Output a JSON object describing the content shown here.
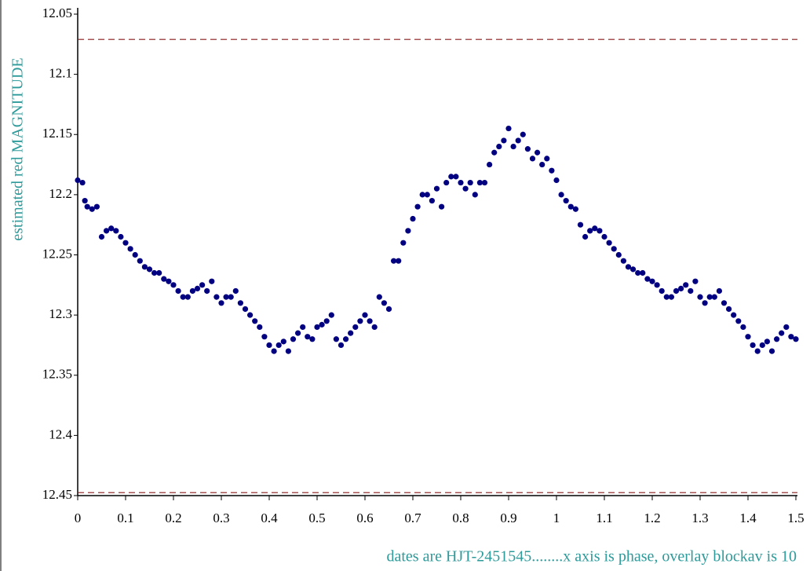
{
  "chart_data": {
    "type": "scatter",
    "y_label": "estimated red MAGNITUDE",
    "note": "dates are HJT-2451545........x axis is phase, overlay blockav is 10",
    "color": "#000080",
    "xlim": [
      0,
      1.5
    ],
    "xticks": [
      0,
      0.1,
      0.2,
      0.3,
      0.4,
      0.5,
      0.6,
      0.7,
      0.8,
      0.9,
      1,
      1.1,
      1.2,
      1.3,
      1.4,
      1.5
    ],
    "ylim": [
      12.05,
      12.45
    ],
    "y_inverted": true,
    "yticks": [
      12.05,
      12.1,
      12.15,
      12.2,
      12.25,
      12.3,
      12.35,
      12.4,
      12.45
    ],
    "reference_lines": {
      "values": [
        12.071,
        12.4475
      ],
      "color": "#8b1a1a"
    },
    "x": [
      0,
      0.01,
      0.015,
      0.02,
      0.03,
      0.04,
      0.05,
      0.06,
      0.07,
      0.08,
      0.09,
      0.1,
      0.11,
      0.12,
      0.13,
      0.14,
      0.15,
      0.16,
      0.17,
      0.18,
      0.19,
      0.2,
      0.21,
      0.22,
      0.23,
      0.24,
      0.25,
      0.26,
      0.27,
      0.28,
      0.29,
      0.3,
      0.31,
      0.32,
      0.33,
      0.34,
      0.35,
      0.36,
      0.37,
      0.38,
      0.39,
      0.4,
      0.41,
      0.42,
      0.43,
      0.44,
      0.45,
      0.46,
      0.47,
      0.48,
      0.49,
      0.5,
      0.51,
      0.52,
      0.53,
      0.54,
      0.55,
      0.56,
      0.57,
      0.58,
      0.59,
      0.6,
      0.61,
      0.62,
      0.63,
      0.64,
      0.65,
      0.66,
      0.67,
      0.68,
      0.69,
      0.7,
      0.71,
      0.72,
      0.73,
      0.74,
      0.75,
      0.76,
      0.77,
      0.78,
      0.79,
      0.8,
      0.81,
      0.82,
      0.83,
      0.84,
      0.85,
      0.86,
      0.87,
      0.88,
      0.89,
      0.9,
      0.91,
      0.92,
      0.93,
      0.94,
      0.95,
      0.96,
      0.97,
      0.98,
      0.99,
      1,
      1.01,
      1.02,
      1.03,
      1.04,
      1.05,
      1.06,
      1.07,
      1.08,
      1.09,
      1.1,
      1.11,
      1.12,
      1.13,
      1.14,
      1.15,
      1.16,
      1.17,
      1.18,
      1.19,
      1.2,
      1.21,
      1.22,
      1.23,
      1.24,
      1.25,
      1.26,
      1.27,
      1.28,
      1.29,
      1.3,
      1.31,
      1.32,
      1.33,
      1.34,
      1.35,
      1.36,
      1.37,
      1.38,
      1.39,
      1.4,
      1.41,
      1.42,
      1.43,
      1.44,
      1.45,
      1.46,
      1.47,
      1.48,
      1.49,
      1.5
    ],
    "values": [
      12.188,
      12.19,
      12.205,
      12.21,
      12.212,
      12.21,
      12.235,
      12.23,
      12.228,
      12.23,
      12.235,
      12.24,
      12.245,
      12.25,
      12.255,
      12.26,
      12.262,
      12.265,
      12.265,
      12.27,
      12.272,
      12.275,
      12.28,
      12.285,
      12.285,
      12.28,
      12.278,
      12.275,
      12.28,
      12.272,
      12.285,
      12.29,
      12.285,
      12.285,
      12.28,
      12.29,
      12.295,
      12.3,
      12.305,
      12.31,
      12.318,
      12.325,
      12.33,
      12.325,
      12.322,
      12.33,
      12.32,
      12.315,
      12.31,
      12.318,
      12.32,
      12.31,
      12.308,
      12.305,
      12.3,
      12.32,
      12.325,
      12.32,
      12.315,
      12.31,
      12.305,
      12.3,
      12.305,
      12.31,
      12.285,
      12.29,
      12.295,
      12.255,
      12.255,
      12.24,
      12.23,
      12.22,
      12.21,
      12.2,
      12.2,
      12.205,
      12.195,
      12.21,
      12.19,
      12.185,
      12.185,
      12.19,
      12.195,
      12.19,
      12.2,
      12.19,
      12.19,
      12.175,
      12.165,
      12.16,
      12.155,
      12.145,
      12.16,
      12.155,
      12.15,
      12.162,
      12.17,
      12.165,
      12.175,
      12.17,
      12.18,
      12.188,
      12.2,
      12.205,
      12.21,
      12.212,
      12.225,
      12.235,
      12.23,
      12.228,
      12.23,
      12.235,
      12.24,
      12.245,
      12.25,
      12.255,
      12.26,
      12.262,
      12.265,
      12.265,
      12.27,
      12.272,
      12.275,
      12.28,
      12.285,
      12.285,
      12.28,
      12.278,
      12.275,
      12.28,
      12.272,
      12.285,
      12.29,
      12.285,
      12.285,
      12.28,
      12.29,
      12.295,
      12.3,
      12.305,
      12.31,
      12.318,
      12.325,
      12.33,
      12.325,
      12.322,
      12.33,
      12.32,
      12.315,
      12.31,
      12.318,
      12.32
    ]
  }
}
